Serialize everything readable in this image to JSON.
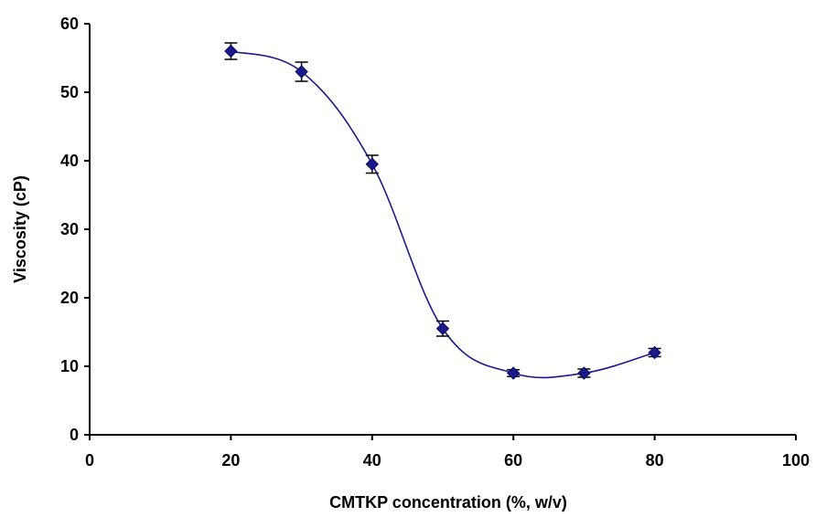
{
  "chart_data": {
    "type": "scatter",
    "title": "",
    "xlabel": "CMTKP concentration (%, w/v)",
    "ylabel": "Viscosity (cP)",
    "xlim": [
      0,
      100
    ],
    "ylim": [
      0,
      60
    ],
    "x_ticks": [
      0,
      20,
      40,
      60,
      80,
      100
    ],
    "y_ticks": [
      0,
      10,
      20,
      30,
      40,
      50,
      60
    ],
    "grid": false,
    "legend": "none",
    "series": [
      {
        "x": [
          20,
          30,
          40,
          50,
          60,
          70,
          80
        ],
        "y": [
          56,
          53,
          39.5,
          15.5,
          9,
          9,
          12
        ],
        "error": [
          1.2,
          1.4,
          1.3,
          1.1,
          0.5,
          0.6,
          0.6
        ],
        "marker": "diamond",
        "line": "smoothed",
        "color": "#1a1a8c"
      }
    ]
  }
}
